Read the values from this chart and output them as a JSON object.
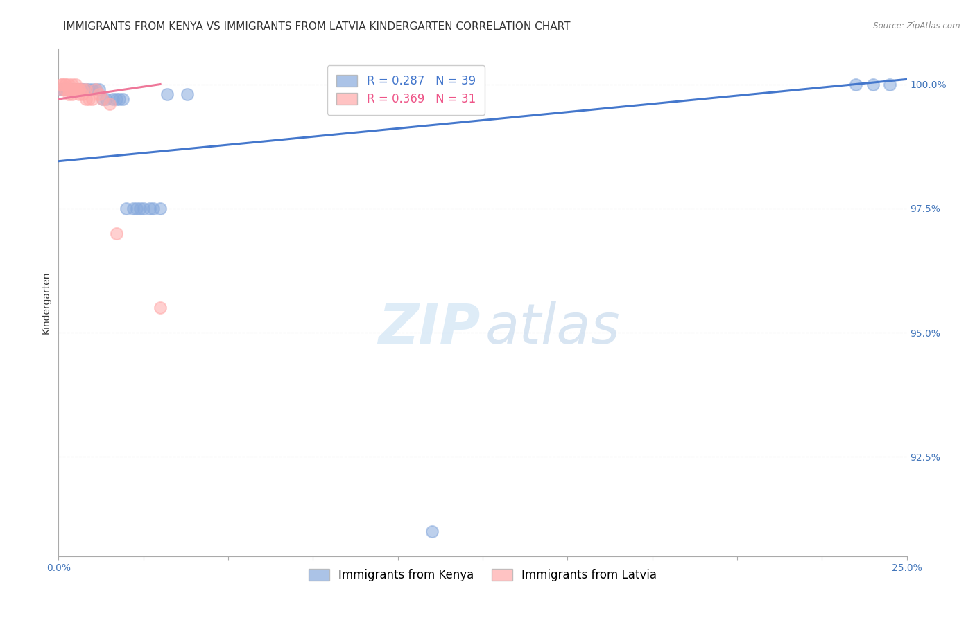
{
  "title": "IMMIGRANTS FROM KENYA VS IMMIGRANTS FROM LATVIA KINDERGARTEN CORRELATION CHART",
  "source": "Source: ZipAtlas.com",
  "ylabel": "Kindergarten",
  "ytick_labels": [
    "100.0%",
    "97.5%",
    "95.0%",
    "92.5%"
  ],
  "ytick_values": [
    1.0,
    0.975,
    0.95,
    0.925
  ],
  "xlim": [
    0.0,
    0.25
  ],
  "ylim": [
    0.905,
    1.007
  ],
  "watermark_zip": "ZIP",
  "watermark_atlas": "atlas",
  "kenya_color": "#88AADD",
  "latvia_color": "#FFAAAA",
  "kenya_line_color": "#4477CC",
  "latvia_line_color": "#EE7799",
  "kenya_x": [
    0.001,
    0.001,
    0.002,
    0.002,
    0.003,
    0.003,
    0.004,
    0.004,
    0.005,
    0.005,
    0.005,
    0.006,
    0.006,
    0.007,
    0.007,
    0.008,
    0.009,
    0.01,
    0.011,
    0.012,
    0.013,
    0.014,
    0.016,
    0.017,
    0.018,
    0.019,
    0.02,
    0.022,
    0.023,
    0.024,
    0.025,
    0.027,
    0.028,
    0.03,
    0.032,
    0.038,
    0.11,
    0.235,
    0.24,
    0.245
  ],
  "kenya_y": [
    0.999,
    0.999,
    0.999,
    0.999,
    0.999,
    0.999,
    0.999,
    0.999,
    0.999,
    0.999,
    0.999,
    0.999,
    0.999,
    0.999,
    0.999,
    0.999,
    0.999,
    0.999,
    0.999,
    0.999,
    0.997,
    0.997,
    0.997,
    0.997,
    0.997,
    0.997,
    0.975,
    0.975,
    0.975,
    0.975,
    0.975,
    0.975,
    0.975,
    0.975,
    0.998,
    0.998,
    0.91,
    1.0,
    1.0,
    1.0
  ],
  "latvia_x": [
    0.001,
    0.001,
    0.001,
    0.002,
    0.002,
    0.002,
    0.003,
    0.003,
    0.003,
    0.003,
    0.004,
    0.004,
    0.004,
    0.005,
    0.005,
    0.005,
    0.006,
    0.006,
    0.006,
    0.007,
    0.007,
    0.008,
    0.008,
    0.009,
    0.01,
    0.011,
    0.012,
    0.013,
    0.015,
    0.017,
    0.03
  ],
  "latvia_y": [
    1.0,
    1.0,
    0.999,
    1.0,
    1.0,
    0.999,
    1.0,
    0.999,
    0.999,
    0.998,
    1.0,
    0.999,
    0.998,
    1.0,
    0.999,
    0.999,
    0.999,
    0.999,
    0.998,
    0.999,
    0.998,
    0.999,
    0.997,
    0.997,
    0.997,
    0.999,
    0.998,
    0.997,
    0.996,
    0.97,
    0.955
  ],
  "kenya_trendline_x": [
    0.0,
    0.25
  ],
  "kenya_trendline_y": [
    0.9845,
    1.001
  ],
  "latvia_trendline_x": [
    0.0,
    0.03
  ],
  "latvia_trendline_y": [
    0.997,
    1.0
  ],
  "background_color": "#FFFFFF",
  "grid_color": "#CCCCCC",
  "title_fontsize": 11,
  "axis_label_fontsize": 10,
  "tick_fontsize": 10,
  "legend_fontsize": 12
}
